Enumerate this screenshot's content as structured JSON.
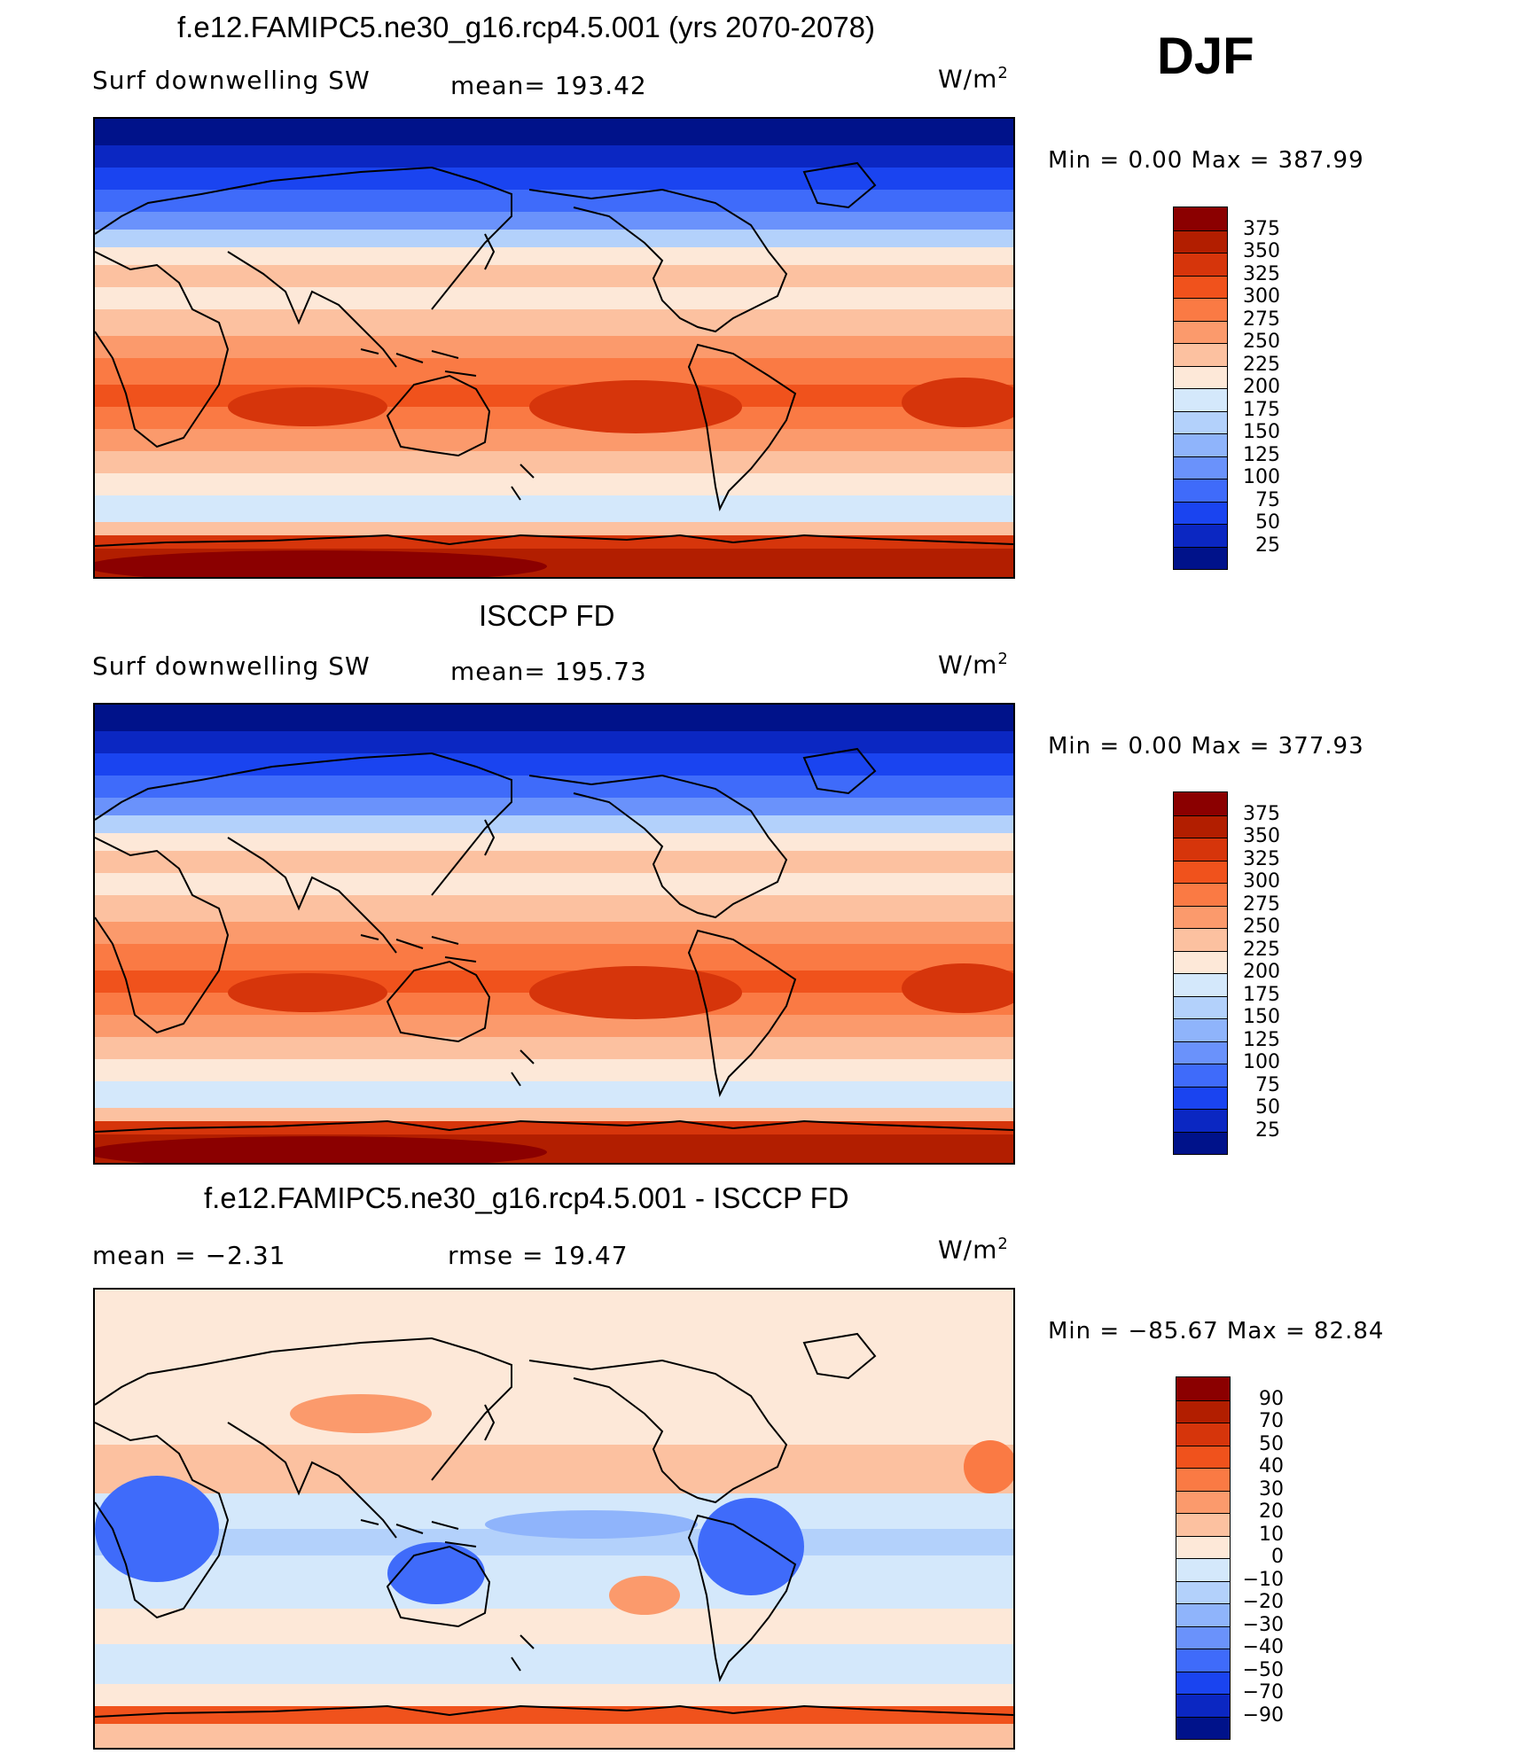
{
  "season": "DJF",
  "chart_data": [
    {
      "type": "heatmap",
      "title": "f.e12.FAMIPC5.ne30_g16.rcp4.5.001 (yrs 2070-2078)",
      "left_label": "Surf  downwelling  SW",
      "stat_label": "mean=  193.42",
      "units_label": "W/m",
      "units_exponent": "2",
      "min_max_label": "Min  =     0.00  Max  =  387.99",
      "min": 0.0,
      "max": 387.99,
      "mean": 193.42,
      "levels": [
        "375",
        "350",
        "325",
        "300",
        "275",
        "250",
        "225",
        "200",
        "175",
        "150",
        "125",
        "100",
        "75",
        "50",
        "25"
      ],
      "colors": [
        "#8b0000",
        "#b21e00",
        "#d6350b",
        "#f0521c",
        "#fa7a44",
        "#fb9a6c",
        "#fcc1a0",
        "#fde8d8",
        "#d4e8fb",
        "#b3d1fb",
        "#8fb4fb",
        "#6a92fb",
        "#3f6bfa",
        "#1a44f0",
        "#0b27c2",
        "#00128a"
      ]
    },
    {
      "type": "heatmap",
      "title": "ISCCP FD",
      "left_label": "Surf  downwelling  SW",
      "stat_label": "mean=  195.73",
      "units_label": "W/m",
      "units_exponent": "2",
      "min_max_label": "Min  =     0.00  Max  =  377.93",
      "min": 0.0,
      "max": 377.93,
      "mean": 195.73,
      "levels": [
        "375",
        "350",
        "325",
        "300",
        "275",
        "250",
        "225",
        "200",
        "175",
        "150",
        "125",
        "100",
        "75",
        "50",
        "25"
      ],
      "colors": [
        "#8b0000",
        "#b21e00",
        "#d6350b",
        "#f0521c",
        "#fa7a44",
        "#fb9a6c",
        "#fcc1a0",
        "#fde8d8",
        "#d4e8fb",
        "#b3d1fb",
        "#8fb4fb",
        "#6a92fb",
        "#3f6bfa",
        "#1a44f0",
        "#0b27c2",
        "#00128a"
      ]
    },
    {
      "type": "heatmap",
      "title": "f.e12.FAMIPC5.ne30_g16.rcp4.5.001 - ISCCP FD",
      "left_label": "mean  =    −2.31",
      "stat_label": "rmse  =    19.47",
      "units_label": "W/m",
      "units_exponent": "2",
      "min_max_label": "Min  = −85.67  Max  =   82.84",
      "min": -85.67,
      "max": 82.84,
      "mean": -2.31,
      "rmse": 19.47,
      "levels": [
        "90",
        "70",
        "50",
        "40",
        "30",
        "20",
        "10",
        "0",
        "−10",
        "−20",
        "−30",
        "−40",
        "−50",
        "−70",
        "−90"
      ],
      "colors": [
        "#8b0000",
        "#b21e00",
        "#d6350b",
        "#f0521c",
        "#fa7a44",
        "#fb9a6c",
        "#fcc1a0",
        "#fde8d8",
        "#d4e8fb",
        "#b3d1fb",
        "#8fb4fb",
        "#6a92fb",
        "#3f6bfa",
        "#1a44f0",
        "#0b27c2",
        "#00128a"
      ]
    }
  ]
}
